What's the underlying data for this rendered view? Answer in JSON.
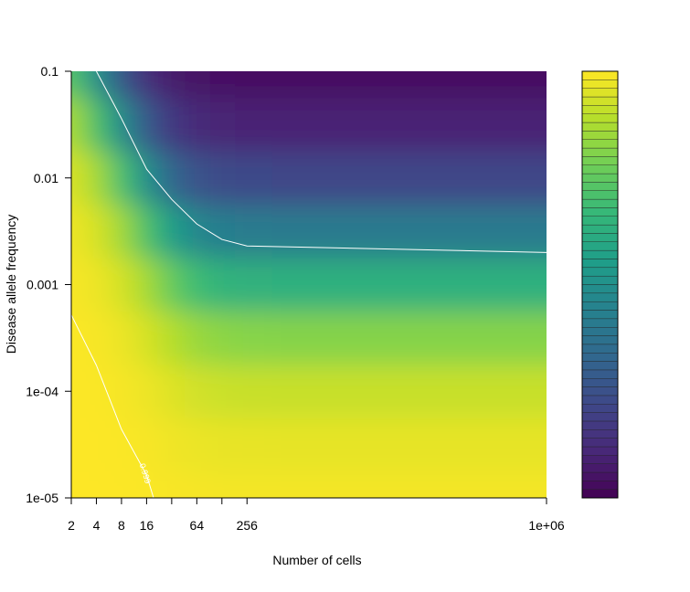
{
  "chart_data": {
    "type": "filled-contour",
    "x_label": "Number of cells",
    "y_label": "Disease allele frequency",
    "x_log": true,
    "y_log": true,
    "colormap": "viridis",
    "zlim": [
      0,
      1
    ],
    "xlim": [
      2,
      1000000
    ],
    "ylim": [
      1e-05,
      0.1
    ],
    "xticks": [
      2,
      4,
      8,
      16,
      {
        "value": 32,
        "label": null
      },
      64,
      {
        "value": 128,
        "label": null
      },
      256,
      {
        "value": 1000000,
        "label": "1e+06"
      }
    ],
    "yticks": [
      {
        "value": 1e-05,
        "label": "1e-05"
      },
      {
        "value": 0.0001,
        "label": "1e-04"
      },
      0.001,
      0.01,
      0.1
    ],
    "x": [
      2,
      4,
      8,
      16,
      32,
      64,
      128,
      256,
      1024,
      16384,
      1000000
    ],
    "y": [
      1e-05,
      3.16e-05,
      0.0001,
      0.000316,
      0.001,
      0.00316,
      0.01,
      0.0316,
      0.1
    ],
    "z": [
      [
        0.9998,
        0.9994,
        0.9983,
        0.996,
        0.9921,
        0.9886,
        0.9867,
        0.9861,
        0.9858,
        0.9858,
        0.9858
      ],
      [
        0.9994,
        0.9984,
        0.9958,
        0.99,
        0.9805,
        0.9718,
        0.9673,
        0.9657,
        0.965,
        0.965,
        0.965
      ],
      [
        0.9985,
        0.996,
        0.9895,
        0.9752,
        0.9524,
        0.932,
        0.9217,
        0.9182,
        0.9166,
        0.9166,
        0.9166
      ],
      [
        0.9962,
        0.99,
        0.9741,
        0.9399,
        0.8884,
        0.8452,
        0.8242,
        0.8171,
        0.8139,
        0.8139,
        0.8139
      ],
      [
        0.9906,
        0.9752,
        0.9374,
        0.8616,
        0.7602,
        0.6848,
        0.6511,
        0.6401,
        0.6353,
        0.6353,
        0.6353
      ],
      [
        0.9768,
        0.9399,
        0.8563,
        0.7124,
        0.5579,
        0.4638,
        0.4263,
        0.4144,
        0.4095,
        0.4095,
        0.4095
      ],
      [
        0.9437,
        0.8616,
        0.7034,
        0.4965,
        0.3343,
        0.2561,
        0.2282,
        0.2199,
        0.2164,
        0.2164,
        0.2164
      ],
      [
        0.8696,
        0.7124,
        0.4857,
        0.2819,
        0.1667,
        0.1206,
        0.1054,
        0.1009,
        0.099,
        0.099,
        0.099
      ],
      [
        0.7262,
        0.4965,
        0.2731,
        0.1352,
        0.0737,
        0.0518,
        0.0448,
        0.0427,
        0.0419,
        0.0419,
        0.0419
      ]
    ],
    "contours": [
      {
        "level": 0.5,
        "x": [
          4,
          8,
          16,
          32,
          64,
          128,
          256,
          1000000
        ],
        "y": [
          0.1,
          0.036,
          0.0121,
          0.0063,
          0.0037,
          0.00265,
          0.0023,
          0.002
        ]
      },
      {
        "level": 0.999,
        "x": [
          2,
          4,
          8,
          16,
          19.4
        ],
        "y": [
          0.00052,
          0.000175,
          4.4e-05,
          1.64e-05,
          1e-05
        ]
      }
    ]
  }
}
